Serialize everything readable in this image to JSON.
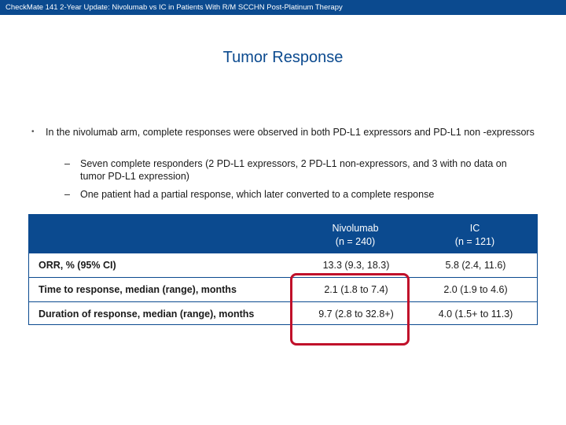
{
  "header": {
    "title": "CheckMate 141 2-Year Update: Nivolumab vs IC in Patients With R/M SCCHN Post-Platinum Therapy"
  },
  "slide": {
    "title": "Tumor Response"
  },
  "bullets": {
    "main_marker": "•",
    "main": "In the nivolumab arm, complete responses were observed in both PD-L1 expressors and PD-L1 non -expressors",
    "sub_marker": "–",
    "sub": [
      "Seven complete responders (2 PD-L1 expressors, 2 PD-L1 non-expressors, and 3 with no data on tumor PD-L1 expression)",
      "One patient had a partial response, which later converted to a complete response"
    ]
  },
  "table": {
    "columns": [
      {
        "name": "Nivolumab",
        "n": "(n = 240)"
      },
      {
        "name": "IC",
        "n": "(n = 121)"
      }
    ],
    "rows": [
      {
        "label": "ORR, % (95% CI)",
        "values": [
          "13.3 (9.3, 18.3)",
          "5.8 (2.4, 11.6)"
        ]
      },
      {
        "label": "Time to response, median (range), months",
        "values": [
          "2.1 (1.8 to 7.4)",
          "2.0 (1.9 to 4.6)"
        ]
      },
      {
        "label": "Duration of response, median (range), months",
        "values": [
          "9.7 (2.8 to 32.8+)",
          "4.0 (1.5+ to 11.3)"
        ]
      }
    ]
  },
  "colors": {
    "brand": "#0b4a8f",
    "highlight": "#c0102a"
  }
}
